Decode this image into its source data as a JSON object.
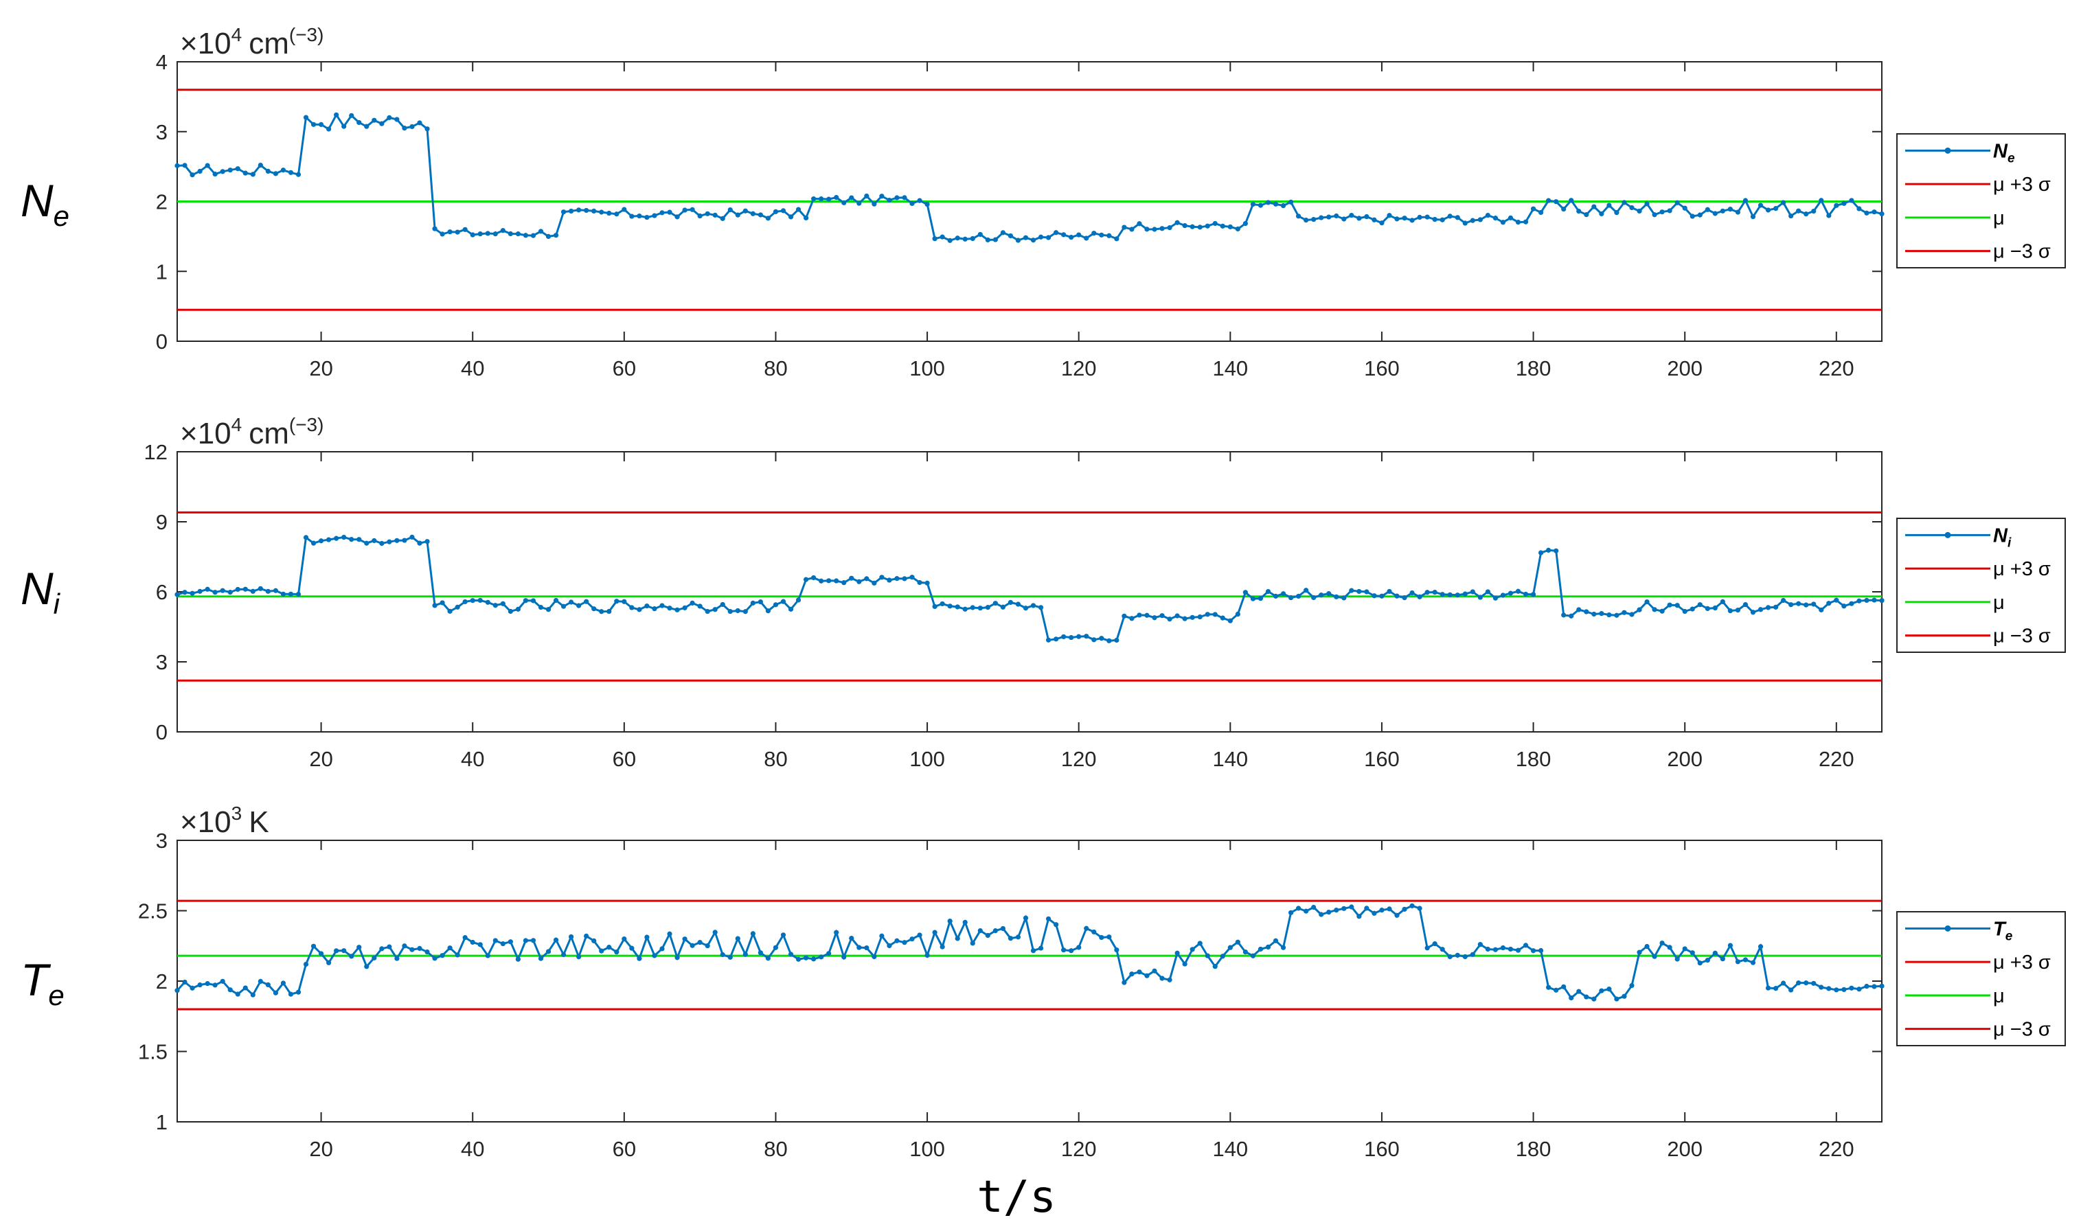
{
  "chart_data": [
    {
      "type": "line",
      "row_label": "N",
      "row_label_sub": "e",
      "exponent_base": "×10",
      "exponent_power": "4",
      "exponent_unit": "cm",
      "exponent_unit_power": "(−3)",
      "xlim": [
        1,
        226
      ],
      "ylim": [
        0,
        4
      ],
      "x_ticks": [
        20,
        40,
        60,
        80,
        100,
        120,
        140,
        160,
        180,
        200,
        220
      ],
      "y_ticks": [
        0,
        1,
        2,
        3,
        4
      ],
      "mu": 2.0,
      "upper": 3.6,
      "lower": 0.45,
      "legend": {
        "series": "N",
        "series_sub": "e",
        "upper": "μ +3 σ",
        "mean": "μ",
        "lower": "μ −3 σ"
      },
      "series_color": "#0072BD",
      "band_color": "#E00000",
      "mean_color": "#00E000",
      "segments": [
        {
          "from": 1,
          "to": 17,
          "level": 2.45,
          "amp": 0.08
        },
        {
          "from": 18,
          "to": 34,
          "level": 3.15,
          "amp": 0.12
        },
        {
          "from": 35,
          "to": 51,
          "level": 1.55,
          "amp": 0.06
        },
        {
          "from": 52,
          "to": 84,
          "level": 1.82,
          "amp": 0.07
        },
        {
          "from": 85,
          "to": 100,
          "level": 2.02,
          "amp": 0.06
        },
        {
          "from": 101,
          "to": 125,
          "level": 1.5,
          "amp": 0.06
        },
        {
          "from": 126,
          "to": 142,
          "level": 1.65,
          "amp": 0.05
        },
        {
          "from": 143,
          "to": 148,
          "level": 1.95,
          "amp": 0.05
        },
        {
          "from": 149,
          "to": 179,
          "level": 1.75,
          "amp": 0.06
        },
        {
          "from": 180,
          "to": 226,
          "level": 1.9,
          "amp": 0.12
        }
      ]
    },
    {
      "type": "line",
      "row_label": "N",
      "row_label_sub": "i",
      "exponent_base": "×10",
      "exponent_power": "4",
      "exponent_unit": "cm",
      "exponent_unit_power": "(−3)",
      "xlim": [
        1,
        226
      ],
      "ylim": [
        0,
        12
      ],
      "x_ticks": [
        20,
        40,
        60,
        80,
        100,
        120,
        140,
        160,
        180,
        200,
        220
      ],
      "y_ticks": [
        0,
        3,
        6,
        9,
        12
      ],
      "mu": 5.8,
      "upper": 9.4,
      "lower": 2.2,
      "legend": {
        "series": "N",
        "series_sub": "i",
        "upper": "μ +3 σ",
        "mean": "μ",
        "lower": "μ −3 σ"
      },
      "series_color": "#0072BD",
      "band_color": "#E00000",
      "mean_color": "#00E000",
      "segments": [
        {
          "from": 1,
          "to": 17,
          "level": 6.0,
          "amp": 0.15
        },
        {
          "from": 18,
          "to": 34,
          "level": 8.2,
          "amp": 0.15
        },
        {
          "from": 35,
          "to": 83,
          "level": 5.4,
          "amp": 0.25
        },
        {
          "from": 84,
          "to": 100,
          "level": 6.5,
          "amp": 0.15
        },
        {
          "from": 101,
          "to": 115,
          "level": 5.4,
          "amp": 0.15
        },
        {
          "from": 116,
          "to": 125,
          "level": 4.0,
          "amp": 0.1
        },
        {
          "from": 126,
          "to": 141,
          "level": 4.9,
          "amp": 0.15
        },
        {
          "from": 142,
          "to": 180,
          "level": 5.9,
          "amp": 0.2
        },
        {
          "from": 181,
          "to": 183,
          "level": 7.7,
          "amp": 0.1
        },
        {
          "from": 184,
          "to": 194,
          "level": 5.1,
          "amp": 0.15
        },
        {
          "from": 195,
          "to": 226,
          "level": 5.4,
          "amp": 0.3
        }
      ]
    },
    {
      "type": "line",
      "row_label": "T",
      "row_label_sub": "e",
      "exponent_base": "×10",
      "exponent_power": "3",
      "exponent_unit": "K",
      "exponent_unit_power": "",
      "xlim": [
        1,
        226
      ],
      "ylim": [
        1,
        3
      ],
      "x_ticks": [
        20,
        40,
        60,
        80,
        100,
        120,
        140,
        160,
        180,
        200,
        220
      ],
      "y_ticks": [
        1,
        1.5,
        2,
        2.5,
        3
      ],
      "mu": 2.18,
      "upper": 2.57,
      "lower": 1.8,
      "legend": {
        "series": "T",
        "series_sub": "e",
        "upper": "μ +3 σ",
        "mean": "μ",
        "lower": "μ −3 σ"
      },
      "series_color": "#0072BD",
      "band_color": "#E00000",
      "mean_color": "#00E000",
      "segments": [
        {
          "from": 1,
          "to": 17,
          "level": 1.95,
          "amp": 0.05
        },
        {
          "from": 18,
          "to": 34,
          "level": 2.18,
          "amp": 0.08
        },
        {
          "from": 35,
          "to": 100,
          "level": 2.25,
          "amp": 0.1
        },
        {
          "from": 101,
          "to": 125,
          "level": 2.33,
          "amp": 0.12
        },
        {
          "from": 126,
          "to": 132,
          "level": 2.03,
          "amp": 0.05
        },
        {
          "from": 133,
          "to": 147,
          "level": 2.2,
          "amp": 0.1
        },
        {
          "from": 148,
          "to": 165,
          "level": 2.5,
          "amp": 0.04
        },
        {
          "from": 166,
          "to": 181,
          "level": 2.22,
          "amp": 0.05
        },
        {
          "from": 182,
          "to": 193,
          "level": 1.92,
          "amp": 0.05
        },
        {
          "from": 194,
          "to": 210,
          "level": 2.2,
          "amp": 0.08
        },
        {
          "from": 211,
          "to": 226,
          "level": 1.96,
          "amp": 0.03
        }
      ]
    }
  ],
  "xlabel": "t/s"
}
